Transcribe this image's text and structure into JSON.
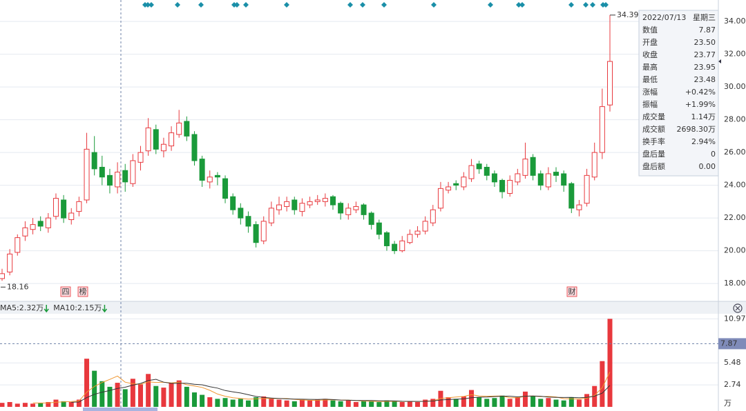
{
  "chart_data": {
    "type": "candlestick",
    "up_color": "#e8383d",
    "down_color": "#1a9a3a",
    "ylim": [
      17.12,
      35.31
    ],
    "yticks": [
      {
        "value": 34,
        "label": "34.00"
      },
      {
        "value": 32,
        "label": "32.00"
      },
      {
        "value": 30,
        "label": "30.00"
      },
      {
        "value": 28,
        "label": "28.00"
      },
      {
        "value": 26,
        "label": "26.00"
      },
      {
        "value": 24,
        "label": "24.00"
      },
      {
        "value": 22,
        "label": "22.00"
      },
      {
        "value": 20,
        "label": "20.00"
      },
      {
        "value": 18,
        "label": "18.00"
      }
    ],
    "grid": true,
    "open": [
      18.3,
      18.7,
      19.9,
      20.9,
      21.3,
      21.8,
      21.4,
      22.1,
      23.1,
      21.9,
      22.4,
      23.1,
      26.0,
      25.1,
      24.6,
      23.9,
      24.9,
      24.1,
      25.4,
      26.1,
      27.4,
      26.1,
      26.4,
      27.1,
      27.9,
      27.1,
      25.6,
      24.2,
      24.6,
      24.4,
      23.3,
      22.6,
      22.1,
      21.6,
      20.6,
      21.7,
      22.5,
      22.7,
      23.1,
      22.4,
      22.8,
      23.0,
      23.0,
      23.3,
      22.9,
      22.2,
      22.5,
      22.8,
      22.3,
      21.7,
      21.1,
      20.4,
      20.0,
      20.5,
      21.0,
      21.2,
      21.7,
      22.6,
      23.7,
      24.1,
      23.9,
      24.4,
      25.3,
      25.1,
      24.7,
      24.3,
      23.5,
      24.2,
      24.6,
      25.7,
      24.7,
      23.9,
      24.8,
      24.7,
      24.1,
      22.5,
      22.9,
      24.5,
      26.0,
      28.9
    ],
    "high": [
      18.9,
      20.1,
      21.0,
      21.8,
      22.0,
      22.1,
      22.3,
      23.5,
      23.4,
      22.6,
      23.3,
      27.2,
      27.0,
      25.8,
      25.0,
      25.4,
      25.3,
      25.9,
      26.4,
      28.1,
      27.7,
      26.9,
      27.6,
      28.6,
      28.2,
      27.3,
      25.8,
      24.9,
      24.8,
      24.6,
      23.5,
      22.9,
      22.4,
      21.8,
      22.1,
      23.0,
      23.3,
      23.3,
      23.3,
      23.2,
      23.3,
      23.4,
      23.5,
      23.4,
      23.0,
      22.9,
      23.0,
      22.9,
      22.4,
      21.9,
      21.2,
      20.6,
      20.9,
      21.3,
      21.5,
      22.1,
      22.8,
      24.2,
      24.2,
      24.3,
      24.8,
      25.6,
      25.5,
      25.3,
      24.9,
      24.4,
      24.6,
      25.0,
      26.6,
      25.9,
      24.9,
      25.1,
      25.1,
      24.9,
      24.2,
      23.1,
      25.0,
      26.6,
      29.9,
      34.39
    ],
    "low": [
      18.16,
      18.5,
      19.7,
      20.6,
      21.0,
      21.2,
      21.1,
      21.9,
      21.7,
      21.6,
      22.1,
      22.9,
      24.6,
      24.0,
      23.5,
      23.5,
      23.6,
      23.9,
      24.9,
      25.8,
      25.9,
      25.7,
      26.1,
      26.9,
      26.7,
      25.2,
      23.9,
      23.8,
      24.0,
      22.9,
      22.2,
      21.6,
      21.1,
      20.2,
      20.4,
      21.5,
      22.2,
      22.4,
      22.2,
      22.1,
      22.6,
      22.8,
      22.7,
      22.5,
      21.9,
      21.9,
      22.3,
      21.9,
      21.3,
      20.7,
      20.0,
      19.8,
      19.9,
      20.4,
      20.8,
      21.0,
      21.5,
      22.4,
      23.5,
      23.7,
      23.7,
      24.2,
      24.7,
      24.3,
      23.9,
      23.2,
      23.3,
      24.0,
      24.4,
      24.3,
      23.7,
      23.7,
      24.2,
      23.6,
      22.3,
      22.1,
      22.7,
      24.3,
      25.6,
      28.5
    ],
    "close": [
      18.6,
      19.8,
      20.8,
      21.4,
      21.6,
      21.5,
      22.0,
      23.2,
      22.0,
      22.3,
      23.0,
      26.2,
      25.0,
      24.5,
      24.0,
      24.8,
      24.2,
      25.5,
      26.0,
      27.5,
      26.2,
      26.5,
      27.2,
      27.8,
      27.0,
      25.5,
      24.3,
      24.5,
      24.5,
      23.2,
      22.5,
      22.0,
      21.5,
      20.5,
      21.8,
      22.6,
      22.8,
      23.0,
      22.5,
      22.9,
      23.0,
      23.1,
      23.2,
      22.8,
      22.3,
      22.6,
      22.7,
      22.2,
      21.6,
      21.0,
      20.3,
      20.0,
      20.6,
      21.0,
      21.2,
      21.8,
      22.5,
      23.8,
      23.9,
      24.0,
      24.5,
      25.2,
      25.0,
      24.6,
      24.2,
      23.6,
      24.3,
      24.7,
      25.6,
      24.6,
      24.0,
      24.7,
      24.6,
      24.0,
      22.6,
      22.8,
      24.6,
      26.0,
      28.8,
      31.56
    ],
    "badges": [
      {
        "text": "四"
      },
      {
        "text": "榜"
      },
      {
        "text": "财"
      }
    ],
    "volume": {
      "ylim": [
        0,
        11.6
      ],
      "yticks": [
        10.97,
        5.48,
        2.74
      ],
      "unit": "万",
      "values": [
        0.5,
        0.6,
        0.4,
        0.5,
        0.4,
        0.5,
        0.6,
        0.9,
        0.7,
        0.6,
        0.9,
        6.0,
        4.5,
        3.2,
        2.5,
        3.0,
        2.2,
        3.5,
        2.8,
        4.1,
        2.6,
        2.4,
        3.0,
        3.3,
        2.5,
        1.8,
        1.5,
        1.2,
        1.0,
        1.1,
        0.9,
        1.0,
        0.8,
        1.2,
        1.3,
        1.0,
        0.9,
        0.8,
        0.7,
        0.9,
        0.8,
        0.9,
        1.0,
        0.8,
        0.7,
        0.8,
        0.6,
        0.7,
        0.7,
        0.6,
        0.8,
        0.7,
        0.6,
        0.7,
        0.6,
        0.9,
        1.0,
        2.0,
        1.2,
        1.0,
        1.3,
        2.1,
        1.2,
        1.0,
        1.1,
        1.4,
        1.0,
        1.2,
        1.9,
        1.3,
        1.0,
        1.1,
        0.9,
        0.8,
        1.2,
        0.9,
        1.6,
        2.6,
        5.7,
        10.97
      ],
      "series": [
        {
          "name": "MA5:2.32万",
          "color": "#f0962e",
          "values": [
            null,
            null,
            null,
            null,
            0.48,
            0.48,
            0.48,
            0.58,
            0.62,
            0.66,
            0.74,
            1.82,
            2.54,
            3.04,
            3.42,
            3.84,
            3.08,
            2.88,
            2.8,
            3.12,
            3.04,
            3.08,
            2.98,
            3.08,
            2.76,
            2.6,
            2.42,
            2.06,
            1.6,
            1.32,
            1.14,
            1.04,
            0.96,
            1.0,
            1.04,
            1.06,
            1.04,
            1.04,
            0.94,
            0.86,
            0.82,
            0.82,
            0.86,
            0.88,
            0.84,
            0.84,
            0.78,
            0.72,
            0.7,
            0.68,
            0.68,
            0.7,
            0.68,
            0.68,
            0.68,
            0.7,
            0.76,
            1.04,
            1.14,
            1.22,
            1.3,
            1.52,
            1.36,
            1.32,
            1.34,
            1.36,
            1.14,
            1.14,
            1.32,
            1.36,
            1.28,
            1.3,
            1.24,
            1.02,
            1.0,
            0.98,
            1.08,
            1.42,
            2.4,
            4.35
          ]
        },
        {
          "name": "MA10:2.15万",
          "color": "#333333",
          "values": [
            null,
            null,
            null,
            null,
            null,
            null,
            null,
            null,
            null,
            0.57,
            0.61,
            1.15,
            1.56,
            1.83,
            2.04,
            2.29,
            2.45,
            2.71,
            2.92,
            3.27,
            3.44,
            3.08,
            2.93,
            2.94,
            2.94,
            2.82,
            2.75,
            2.52,
            2.34,
            2.04,
            1.87,
            1.73,
            1.51,
            1.3,
            1.18,
            1.1,
            1.04,
            1.0,
            0.97,
            0.95,
            0.94,
            0.93,
            0.95,
            0.91,
            0.85,
            0.83,
            0.8,
            0.79,
            0.79,
            0.76,
            0.76,
            0.74,
            0.7,
            0.69,
            0.68,
            0.69,
            0.73,
            0.86,
            0.91,
            0.95,
            1.0,
            1.14,
            1.2,
            1.23,
            1.28,
            1.33,
            1.33,
            1.25,
            1.32,
            1.35,
            1.32,
            1.22,
            1.19,
            1.17,
            1.18,
            1.13,
            1.19,
            1.33,
            1.71,
            2.68
          ]
        }
      ]
    },
    "info": {
      "date": "2022/07/13",
      "weekday": "星期三",
      "rows": [
        {
          "label": "数值",
          "value": 7.87,
          "color": "#e8383d"
        },
        {
          "label": "开盘",
          "value": "23.50",
          "color": "#1a9a3a"
        },
        {
          "label": "收盘",
          "value": "23.77",
          "color": "#e8383d"
        },
        {
          "label": "最高",
          "value": "23.95",
          "color": "#e8383d"
        },
        {
          "label": "最低",
          "value": "23.48",
          "color": "#1a9a3a"
        },
        {
          "label": "涨幅",
          "value": "+0.42%",
          "color": "#e8383d"
        },
        {
          "label": "振幅",
          "value": "+1.99%",
          "color": "#1a8fa0"
        },
        {
          "label": "成交量",
          "value": "1.14万",
          "color": "#1a8fa0"
        },
        {
          "label": "成交额",
          "value": "2698.30万",
          "color": "#333333"
        },
        {
          "label": "换手率",
          "value": "2.94%",
          "color": "#1a8fa0"
        },
        {
          "label": "盘后量",
          "value": "0",
          "color": "#1a8fa0"
        },
        {
          "label": "盘后额",
          "value": "0.00",
          "color": "#1a8fa0"
        }
      ]
    }
  }
}
